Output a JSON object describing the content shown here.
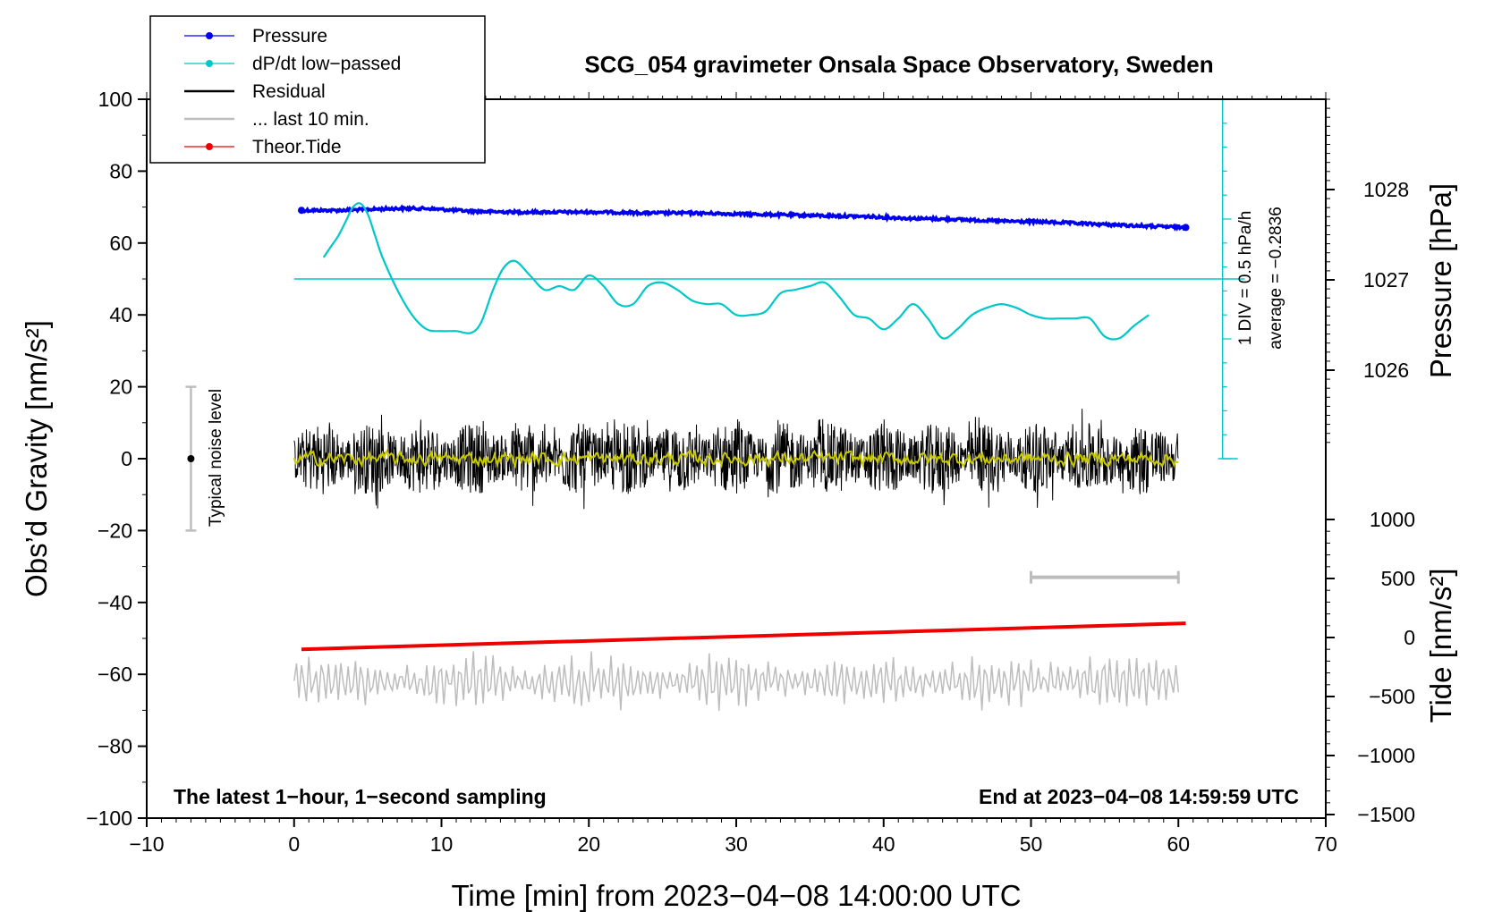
{
  "chart_data": {
    "type": "line",
    "title": "SCG_054 gravimeter Onsala Space Observatory, Sweden",
    "xlabel": "Time [min] from 2023−04−08 14:00:00 UTC",
    "ylabel_left": "Obs’d Gravity [nm/s²]",
    "ylabel_right_pressure": "Pressure [hPa]",
    "ylabel_right_tide": "Tide [nm/s²]",
    "xlim": [
      -10,
      70
    ],
    "ylim": [
      -100,
      100
    ],
    "x_ticks": [
      "−10",
      "0",
      "10",
      "20",
      "30",
      "40",
      "50",
      "60",
      "70"
    ],
    "y_ticks": [
      "−100",
      "−80",
      "−60",
      "−40",
      "−20",
      "0",
      "20",
      "40",
      "60",
      "80",
      "100"
    ],
    "pressure_ticks": [
      "1028",
      "1027",
      "1026"
    ],
    "tide_ticks": [
      "1000",
      "500",
      "0",
      "−500",
      "−1000",
      "−1500"
    ],
    "legend": {
      "items": [
        {
          "label": "Pressure",
          "color": "#0000ee",
          "marker": "dot"
        },
        {
          "label": "dP/dt low−passed",
          "color": "#00c8c8",
          "marker": "dot"
        },
        {
          "label": "Residual",
          "color": "#000000",
          "marker": "line"
        },
        {
          "label": "... last 10 min.",
          "color": "#bdbdbd",
          "marker": "line"
        },
        {
          "label": "Theor.Tide",
          "color": "#ee0000",
          "marker": "dot"
        }
      ],
      "position": "top-left"
    },
    "annotations": {
      "noise_level": "Typical noise level",
      "dpdt_scale": "1 DIV = 0.5 hPa/h",
      "dpdt_average": "average = −0.2836",
      "bottom_left": "The latest 1−hour, 1−second sampling",
      "bottom_right": "End at 2023−04−08 14:59:59 UTC"
    },
    "series": [
      {
        "name": "Pressure",
        "axis": "pressure_hPa",
        "color": "#0000ee",
        "x": [
          0.5,
          3,
          5,
          7,
          9,
          12,
          15,
          18,
          21,
          24,
          27,
          30,
          33,
          36,
          39,
          42,
          45,
          48,
          51,
          54,
          57,
          60.5
        ],
        "values": [
          1027.77,
          1027.77,
          1027.78,
          1027.79,
          1027.79,
          1027.76,
          1027.75,
          1027.75,
          1027.75,
          1027.74,
          1027.74,
          1027.73,
          1027.72,
          1027.71,
          1027.7,
          1027.68,
          1027.67,
          1027.65,
          1027.64,
          1027.62,
          1027.6,
          1027.58
        ]
      },
      {
        "name": "dP/dt low−passed",
        "axis": "gravity",
        "color": "#00c8c8",
        "reference_level": 50,
        "x": [
          2,
          2.5,
          3,
          3.5,
          4,
          4.5,
          5,
          5.5,
          6,
          7,
          8,
          9,
          10,
          11,
          12,
          12.7,
          13.5,
          14.2,
          15,
          16,
          17,
          18,
          19,
          20,
          21,
          22,
          23,
          24,
          25,
          26,
          27,
          28,
          29,
          30,
          31,
          32,
          33,
          34,
          35,
          36,
          37,
          38,
          39,
          40,
          41,
          42,
          43,
          44,
          45,
          46,
          47,
          48,
          49,
          50,
          51,
          52,
          53,
          54,
          55,
          56,
          57,
          58
        ],
        "values": [
          56,
          59,
          62,
          66,
          70,
          71,
          68,
          62,
          56,
          47,
          40,
          36,
          35.5,
          35.5,
          35,
          38,
          47,
          53,
          55,
          51,
          47,
          48,
          47,
          51,
          48,
          43,
          43,
          48,
          49,
          47,
          44,
          43,
          43,
          40,
          40,
          41,
          46,
          47,
          48,
          49,
          45,
          40,
          39,
          36,
          39,
          43,
          39,
          33.5,
          36,
          40,
          42,
          43,
          42,
          40,
          39,
          39,
          39,
          39,
          34,
          33.5,
          37,
          40
        ]
      },
      {
        "name": "Residual",
        "axis": "gravity",
        "color": "#000000",
        "x_range": [
          0,
          60
        ],
        "amplitude": 10,
        "sampling": "1 s"
      },
      {
        "name": "Residual smoothed",
        "axis": "gravity",
        "color": "#c8c800",
        "x_range": [
          0,
          60
        ],
        "amplitude": 1.5
      },
      {
        "name": "... last 10 min.",
        "axis": "gravity",
        "color": "#bdbdbd",
        "x_range": [
          0,
          60
        ],
        "center": -62,
        "amplitude": 8,
        "bar": {
          "x": [
            50,
            60
          ],
          "y": -33
        }
      },
      {
        "name": "Theor.Tide",
        "axis": "tide_nm_s2",
        "color": "#ee0000",
        "x": [
          0.5,
          60.5
        ],
        "values": [
          -100,
          120
        ]
      }
    ],
    "noise_bar": {
      "x": -7,
      "y": [
        -20,
        20
      ],
      "center": 0
    },
    "grid": false
  }
}
